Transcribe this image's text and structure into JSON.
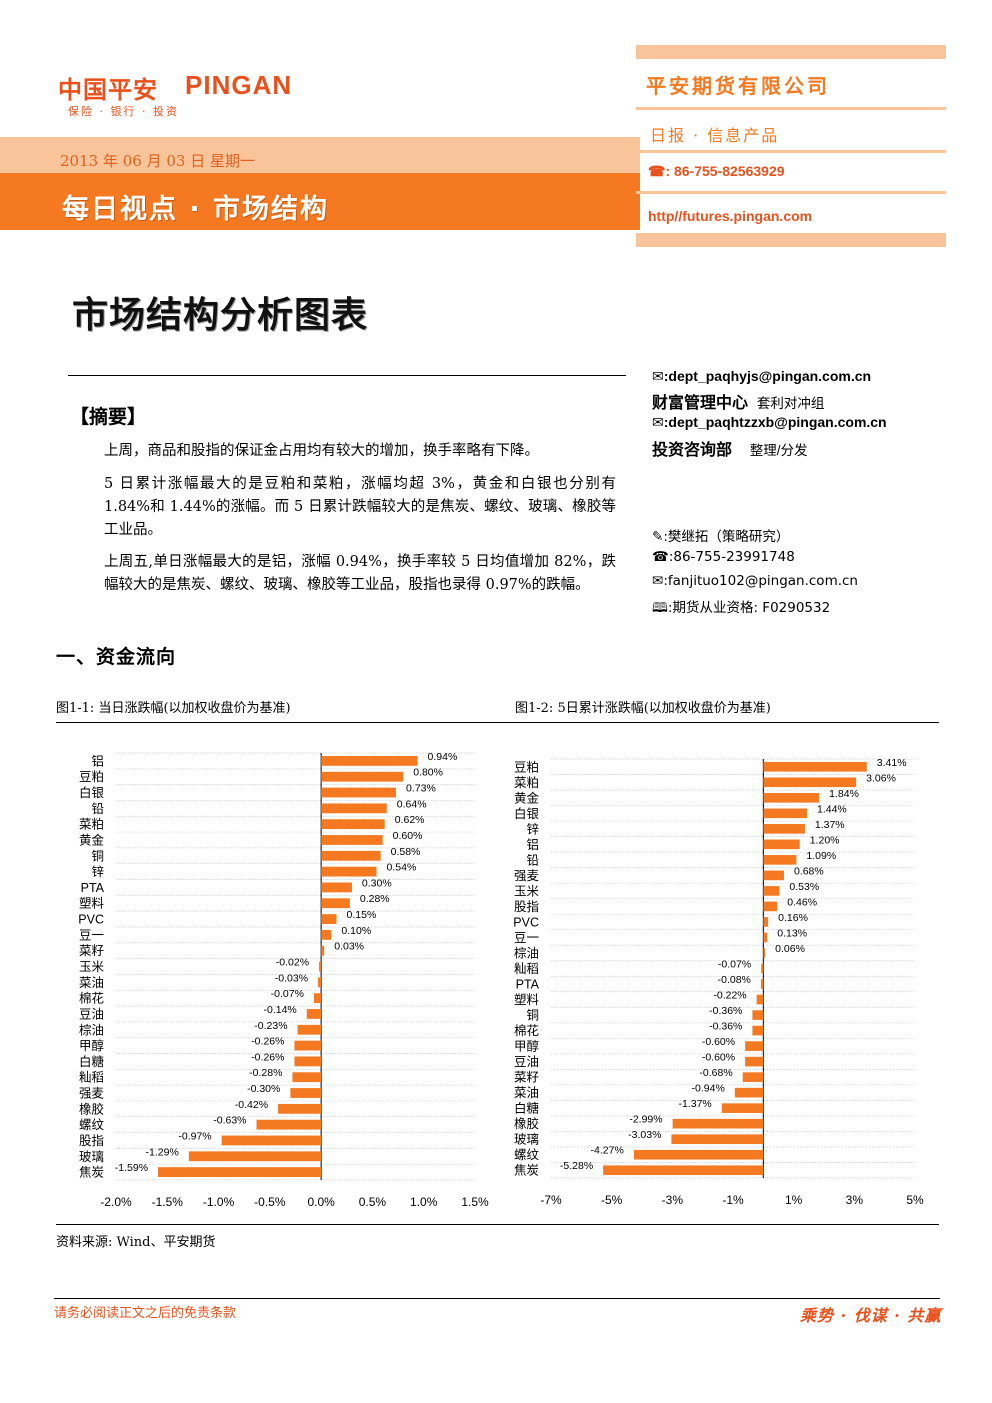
{
  "header": {
    "logo_cn": "中国平安",
    "logo_en": "PINGAN",
    "logo_sub": "保险 · 银行 · 投资",
    "date": "2013 年 06 月 03 日  星期一",
    "title": "每日视点 · 市场结构",
    "company": "平安期货有限公司",
    "product": "日报 · 信息产品",
    "phone": "86-755-82563929",
    "url": "http//futures.pingan.com",
    "brand_color": "#f47920",
    "light_color": "#f9c49a"
  },
  "main_title": "市场结构分析图表",
  "summary": {
    "heading": "【摘要】",
    "paragraphs": [
      "上周，商品和股指的保证金占用均有较大的增加，换手率略有下降。",
      "5 日累计涨幅最大的是豆粕和菜粕，涨幅均超 3%，黄金和白银也分别有 1.84%和 1.44%的涨幅。而 5 日累计跌幅较大的是焦炭、螺纹、玻璃、橡胶等工业品。",
      "上周五,单日涨幅最大的是铝，涨幅 0.94%，换手率较 5 日均值增加 82%，跌幅较大的是焦炭、螺纹、玻璃、橡胶等工业品，股指也录得 0.97%的跌幅。"
    ]
  },
  "contacts": {
    "email1": ":dept_paqhyjs@pingan.com.cn",
    "dept1": "财富管理中心",
    "dept1_sub": "套利对冲组",
    "email2": ":dept_paqhtzzxb@pingan.com.cn",
    "dept2": "投资咨询部",
    "dept2_sub": "整理/分发",
    "analyst": ":樊继拓（策略研究）",
    "analyst_phone": ":86-755-23991748",
    "analyst_email": ":fanjituo102@pingan.com.cn",
    "license": ":期货从业资格: F0290532",
    "icons": [
      "mail-icon",
      "phone-icon",
      "pen-icon",
      "book-icon"
    ]
  },
  "section": {
    "heading": "一、资金流向"
  },
  "figure1": {
    "caption": "图1-1:  当日涨跌幅(以加权收盘价为基准)"
  },
  "figure2": {
    "caption": "图1-2:  5日累计涨跌幅(以加权收盘价为基准)"
  },
  "source": "资料来源: Wind、平安期货",
  "footer": {
    "note": "请务必阅读正文之后的免责条款",
    "slogan": "乘势 · 伐谋 · 共赢"
  },
  "chart_data": [
    {
      "type": "bar",
      "orientation": "horizontal",
      "categories": [
        "铝",
        "豆粕",
        "白银",
        "铅",
        "菜粕",
        "黄金",
        "铜",
        "锌",
        "PTA",
        "塑料",
        "PVC",
        "豆一",
        "菜籽",
        "玉米",
        "菜油",
        "棉花",
        "豆油",
        "棕油",
        "甲醇",
        "白糖",
        "籼稻",
        "强麦",
        "橡胶",
        "螺纹",
        "股指",
        "玻璃",
        "焦炭"
      ],
      "values": [
        0.94,
        0.8,
        0.73,
        0.64,
        0.62,
        0.6,
        0.58,
        0.54,
        0.3,
        0.28,
        0.15,
        0.1,
        0.03,
        -0.02,
        -0.03,
        -0.07,
        -0.14,
        -0.23,
        -0.26,
        -0.26,
        -0.28,
        -0.3,
        -0.42,
        -0.63,
        -0.97,
        -1.29,
        -1.59
      ],
      "data_labels": [
        "0.94%",
        "0.80%",
        "0.73%",
        "0.64%",
        "0.62%",
        "0.60%",
        "0.58%",
        "0.54%",
        "0.30%",
        "0.28%",
        "0.15%",
        "0.10%",
        "0.03%",
        "-0.02%",
        "-0.03%",
        "-0.07%",
        "-0.14%",
        "-0.23%",
        "-0.26%",
        "-0.26%",
        "-0.28%",
        "-0.30%",
        "-0.42%",
        "-0.63%",
        "-0.97%",
        "-1.29%",
        "-1.59%"
      ],
      "xlim": [
        -2.0,
        1.5
      ],
      "ticks": [
        -2.0,
        -1.5,
        -1.0,
        -0.5,
        0.0,
        0.5,
        1.0,
        1.5
      ],
      "tick_labels": [
        "-2.0%",
        "-1.5%",
        "-1.0%",
        "-0.5%",
        "0.0%",
        "0.5%",
        "1.0%",
        "1.5%"
      ],
      "bar_color": "#f47920",
      "grid": true
    },
    {
      "type": "bar",
      "orientation": "horizontal",
      "categories": [
        "豆粕",
        "菜粕",
        "黄金",
        "白银",
        "锌",
        "铝",
        "铅",
        "强麦",
        "玉米",
        "股指",
        "PVC",
        "豆一",
        "棕油",
        "籼稻",
        "PTA",
        "塑料",
        "铜",
        "棉花",
        "甲醇",
        "豆油",
        "菜籽",
        "菜油",
        "白糖",
        "橡胶",
        "玻璃",
        "螺纹",
        "焦炭"
      ],
      "values": [
        3.41,
        3.06,
        1.84,
        1.44,
        1.37,
        1.2,
        1.09,
        0.68,
        0.53,
        0.46,
        0.16,
        0.13,
        0.06,
        -0.07,
        -0.08,
        -0.22,
        -0.36,
        -0.36,
        -0.6,
        -0.6,
        -0.68,
        -0.94,
        -1.37,
        -2.99,
        -3.03,
        -4.27,
        -5.28
      ],
      "data_labels": [
        "3.41%",
        "3.06%",
        "1.84%",
        "1.44%",
        "1.37%",
        "1.20%",
        "1.09%",
        "0.68%",
        "0.53%",
        "0.46%",
        "0.16%",
        "0.13%",
        "0.06%",
        "-0.07%",
        "-0.08%",
        "-0.22%",
        "-0.36%",
        "-0.36%",
        "-0.60%",
        "-0.60%",
        "-0.68%",
        "-0.94%",
        "-1.37%",
        "-2.99%",
        "-3.03%",
        "-4.27%",
        "-5.28%"
      ],
      "xlim": [
        -7,
        5
      ],
      "ticks": [
        -7,
        -5,
        -3,
        -1,
        1,
        3,
        5
      ],
      "tick_labels": [
        "-7%",
        "-5%",
        "-3%",
        "-1%",
        "1%",
        "3%",
        "5%"
      ],
      "bar_color": "#f47920",
      "grid": true
    }
  ]
}
